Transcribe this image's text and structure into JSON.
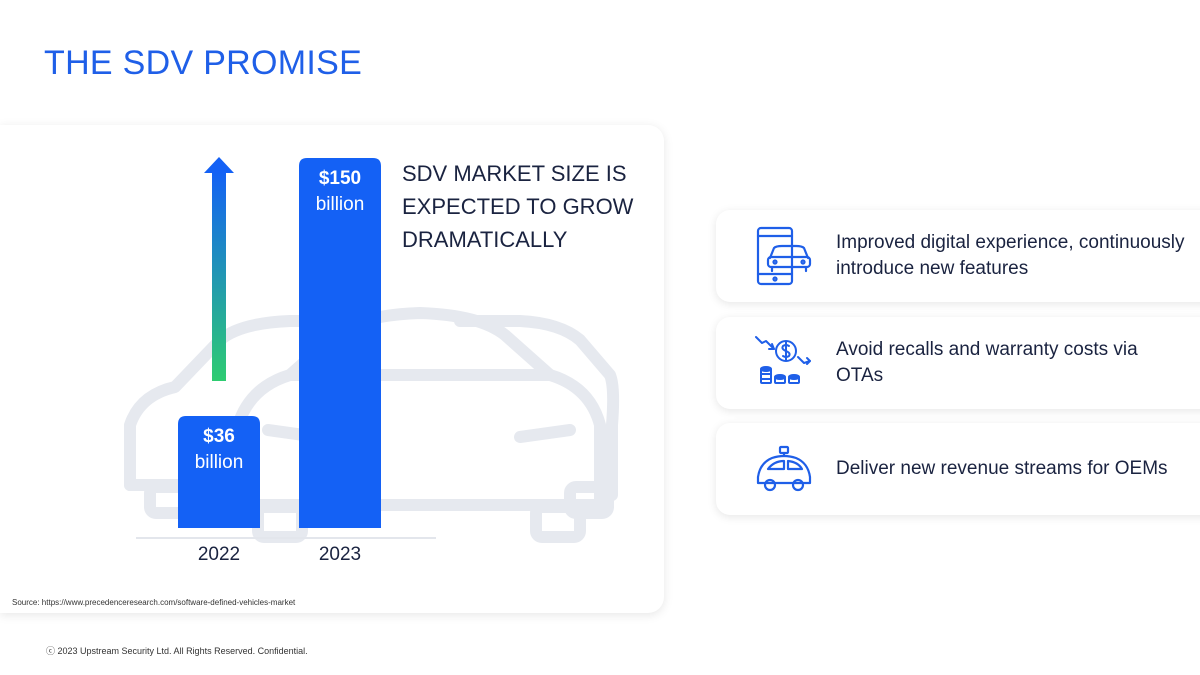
{
  "slide": {
    "title": "THE SDV PROMISE",
    "footer": "ⓒ 2023 Upstream Security Ltd. All Rights Reserved. Confidential."
  },
  "chart_data": {
    "type": "bar",
    "categories": [
      "2022",
      "2023"
    ],
    "values": [
      36,
      150
    ],
    "value_labels": [
      {
        "value": "$36",
        "unit": "billion"
      },
      {
        "value": "$150",
        "unit": "billion"
      }
    ],
    "title": "SDV MARKET SIZE IS EXPECTED TO GROW DRAMATICALLY",
    "ylim": [
      0,
      150
    ],
    "grid": false,
    "bar_color": "#1461f5",
    "arrow_gradient": [
      "#2ecc71",
      "#1461f5"
    ],
    "source": "Source: https://www.precedenceresearch.com/software-defined-vehicles-market"
  },
  "features": [
    {
      "icon": "phone-car-icon",
      "text": "Improved digital experience, continuously introduce new features"
    },
    {
      "icon": "dollar-coins-icon",
      "text": "Avoid recalls and warranty costs via OTAs"
    },
    {
      "icon": "autonomous-car-icon",
      "text": "Deliver new revenue streams for OEMs"
    }
  ],
  "colors": {
    "accent": "#1f5fe8",
    "bar": "#1461f5",
    "icon": "#1f5fe8",
    "car_outline": "#e6e9ef"
  }
}
